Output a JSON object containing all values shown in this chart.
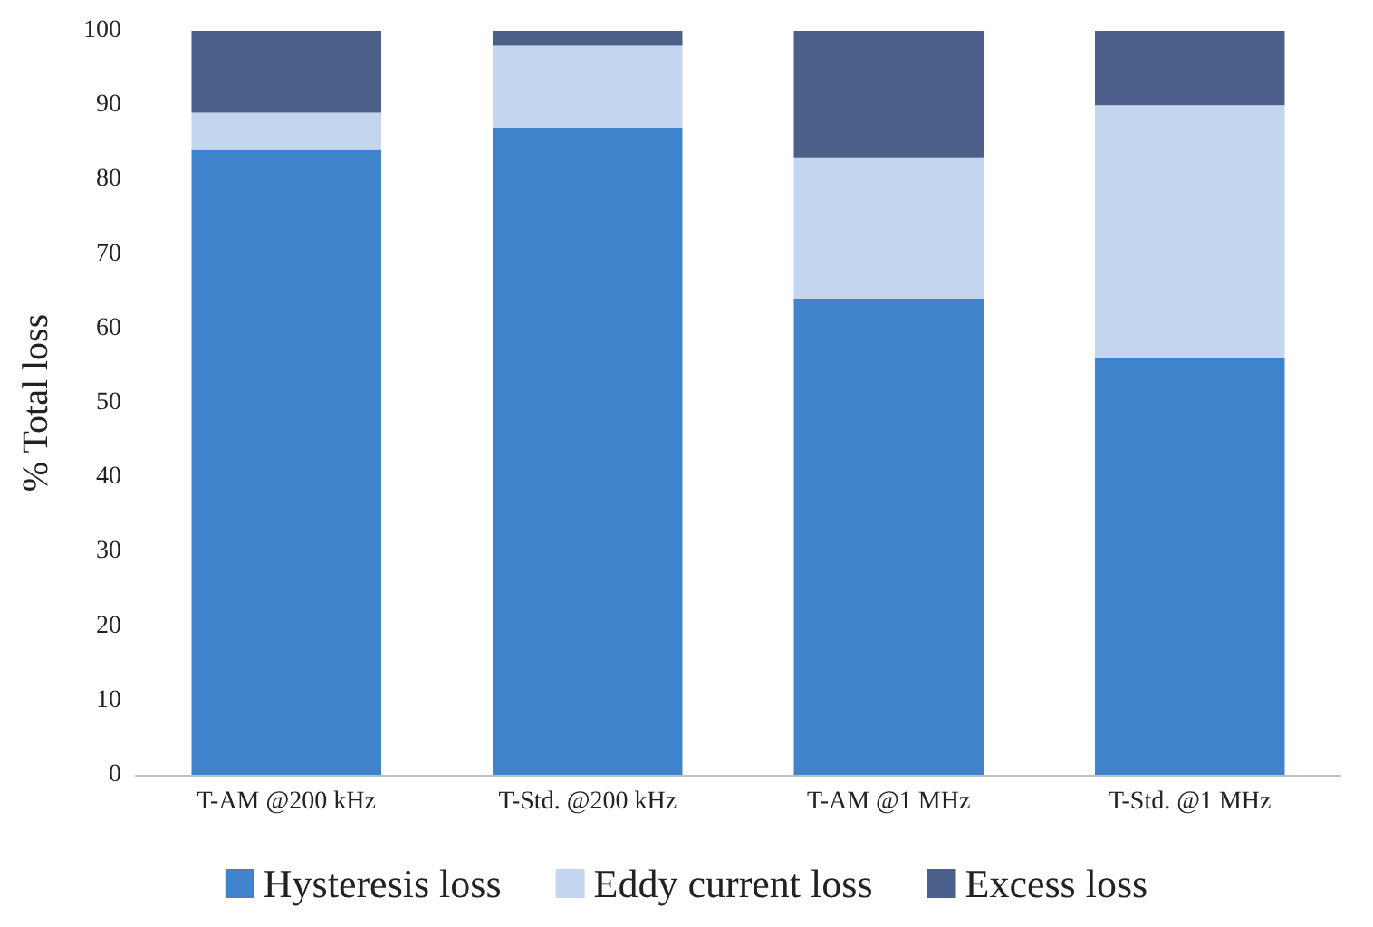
{
  "chart_data": {
    "type": "bar",
    "stacked": true,
    "ylabel": "% Total loss",
    "categories": [
      "T-AM @200 kHz",
      "T-Std. @200 kHz",
      "T-AM @1 MHz",
      "T-Std. @1 MHz"
    ],
    "series": [
      {
        "name": "Hysteresis loss",
        "color": "#3e83cc",
        "values": [
          84,
          87,
          64,
          56
        ]
      },
      {
        "name": "Eddy current loss",
        "color": "#c3d5ef",
        "values": [
          5,
          11,
          19,
          34
        ]
      },
      {
        "name": "Excess loss",
        "color": "#4a5f8a",
        "values": [
          11,
          2,
          17,
          10
        ]
      }
    ],
    "ylim": [
      0,
      100
    ],
    "yticks": [
      0,
      10,
      20,
      30,
      40,
      50,
      60,
      70,
      80,
      90,
      100
    ],
    "grid": false,
    "legend": "bottom"
  }
}
